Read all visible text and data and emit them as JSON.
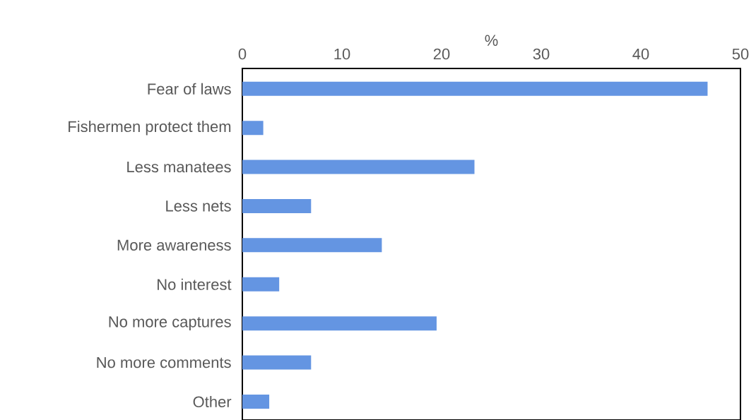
{
  "chart_data": {
    "type": "bar",
    "orientation": "horizontal",
    "xlabel": "%",
    "categories": [
      "Fear of laws",
      "Fishermen protect them",
      "Less manatees",
      "Less nets",
      "More awareness",
      "No interest",
      "No more captures",
      "No more comments",
      "Other"
    ],
    "values": [
      46.7,
      2.1,
      23.3,
      6.9,
      14.0,
      3.7,
      19.5,
      6.9,
      2.7
    ],
    "color": "#6495e2",
    "xlim": [
      0,
      50
    ],
    "xticks": [
      0,
      10,
      20,
      30,
      40,
      50
    ]
  }
}
